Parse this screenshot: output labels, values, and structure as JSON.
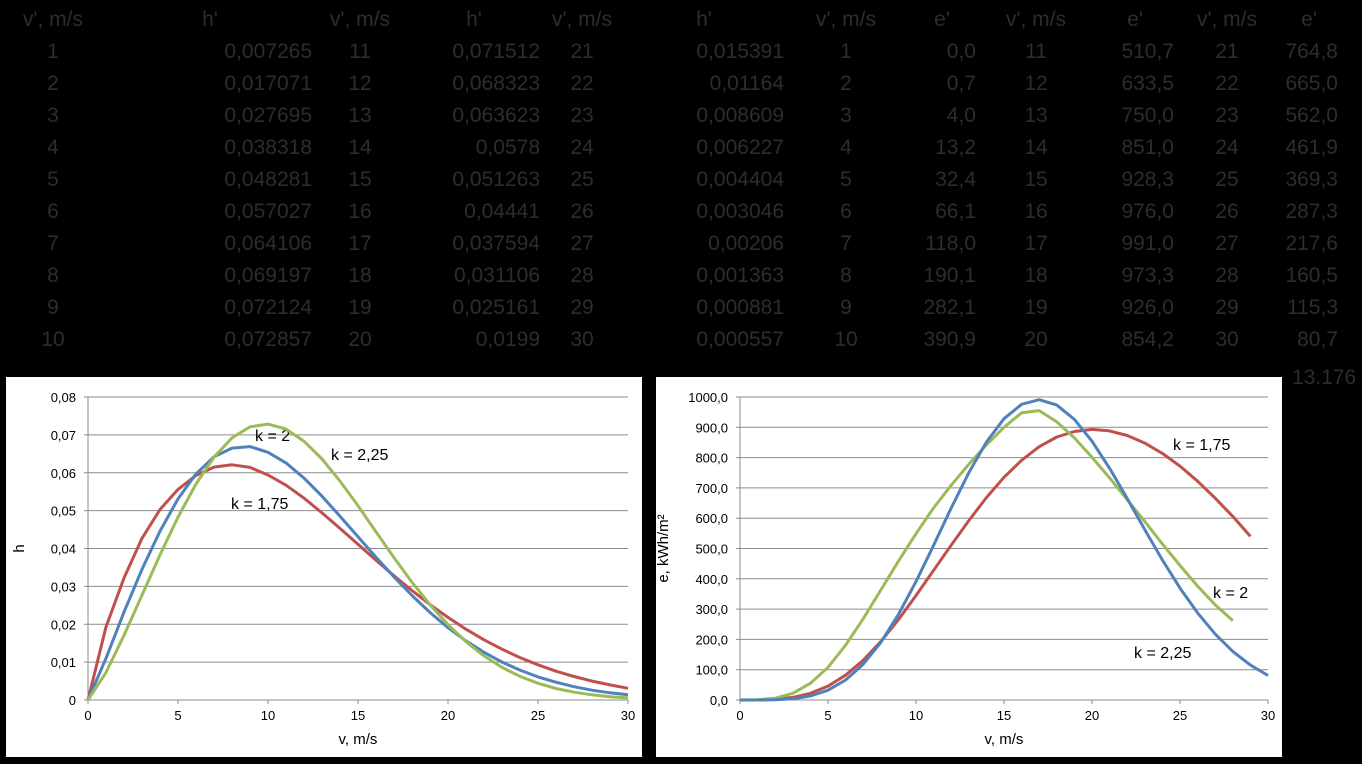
{
  "table": {
    "headers": [
      "v', m/s",
      "h'",
      "v', m/s",
      "h'",
      "v', m/s",
      "h'",
      "v', m/s",
      "e'",
      "v', m/s",
      "e'",
      "v', m/s",
      "e'"
    ],
    "rows": [
      [
        "1",
        "0,007265",
        "11",
        "0,071512",
        "21",
        "0,015391",
        "1",
        "0,0",
        "11",
        "510,7",
        "21",
        "764,8"
      ],
      [
        "2",
        "0,017071",
        "12",
        "0,068323",
        "22",
        "0,01164",
        "2",
        "0,7",
        "12",
        "633,5",
        "22",
        "665,0"
      ],
      [
        "3",
        "0,027695",
        "13",
        "0,063623",
        "23",
        "0,008609",
        "3",
        "4,0",
        "13",
        "750,0",
        "23",
        "562,0"
      ],
      [
        "4",
        "0,038318",
        "14",
        "0,0578",
        "24",
        "0,006227",
        "4",
        "13,2",
        "14",
        "851,0",
        "24",
        "461,9"
      ],
      [
        "5",
        "0,048281",
        "15",
        "0,051263",
        "25",
        "0,004404",
        "5",
        "32,4",
        "15",
        "928,3",
        "25",
        "369,3"
      ],
      [
        "6",
        "0,057027",
        "16",
        "0,04441",
        "26",
        "0,003046",
        "6",
        "66,1",
        "16",
        "976,0",
        "26",
        "287,3"
      ],
      [
        "7",
        "0,064106",
        "17",
        "0,037594",
        "27",
        "0,00206",
        "7",
        "118,0",
        "17",
        "991,0",
        "27",
        "217,6"
      ],
      [
        "8",
        "0,069197",
        "18",
        "0,031106",
        "28",
        "0,001363",
        "8",
        "190,1",
        "18",
        "973,3",
        "28",
        "160,5"
      ],
      [
        "9",
        "0,072124",
        "19",
        "0,025161",
        "29",
        "0,000881",
        "9",
        "282,1",
        "19",
        "926,0",
        "29",
        "115,3"
      ],
      [
        "10",
        "0,072857",
        "20",
        "0,0199",
        "30",
        "0,000557",
        "10",
        "390,9",
        "20",
        "854,2",
        "30",
        "80,7"
      ]
    ],
    "total": "13.176"
  },
  "chart_data": [
    {
      "type": "line",
      "title": "",
      "xlabel": "v, m/s",
      "ylabel": "h",
      "xlim": [
        0,
        30
      ],
      "ylim": [
        0,
        0.08
      ],
      "xticks": [
        "0",
        "5",
        "10",
        "15",
        "20",
        "25",
        "30"
      ],
      "yticks": [
        "0",
        "0,01",
        "0,02",
        "0,03",
        "0,04",
        "0,05",
        "0,06",
        "0,07",
        "0,08"
      ],
      "grid": true,
      "x": [
        0,
        1,
        2,
        3,
        4,
        5,
        6,
        7,
        8,
        9,
        10,
        11,
        12,
        13,
        14,
        15,
        16,
        17,
        18,
        19,
        20,
        21,
        22,
        23,
        24,
        25,
        26,
        27,
        28,
        29,
        30
      ],
      "series": [
        {
          "name": "k = 1,75",
          "color": "#c0504d",
          "values": [
            0,
            0.0193,
            0.0322,
            0.0427,
            0.0503,
            0.0556,
            0.0593,
            0.0615,
            0.0621,
            0.0614,
            0.0594,
            0.0567,
            0.0533,
            0.0494,
            0.0453,
            0.0411,
            0.0369,
            0.0328,
            0.0289,
            0.0252,
            0.0218,
            0.0187,
            0.0159,
            0.0134,
            0.0112,
            0.0093,
            0.0076,
            0.0062,
            0.005,
            0.004,
            0.0031
          ]
        },
        {
          "name": "k = 2",
          "color": "#4f81bd",
          "values": [
            0,
            0.011,
            0.0232,
            0.0345,
            0.0446,
            0.0531,
            0.0597,
            0.0642,
            0.0665,
            0.0669,
            0.0654,
            0.0626,
            0.0586,
            0.0538,
            0.0485,
            0.0431,
            0.0377,
            0.0325,
            0.0276,
            0.0231,
            0.0191,
            0.0156,
            0.0126,
            0.01,
            0.0079,
            0.0061,
            0.0047,
            0.0035,
            0.0026,
            0.0019,
            0.0014
          ]
        },
        {
          "name": "k = 2,25",
          "color": "#9bbb59",
          "values": [
            0,
            0.007265,
            0.017071,
            0.027695,
            0.038318,
            0.048281,
            0.057027,
            0.064106,
            0.069197,
            0.072124,
            0.072857,
            0.071512,
            0.068323,
            0.063623,
            0.0578,
            0.051263,
            0.04441,
            0.037594,
            0.031106,
            0.025161,
            0.0199,
            0.015391,
            0.01164,
            0.008609,
            0.006227,
            0.004404,
            0.003046,
            0.00206,
            0.001363,
            0.000881,
            0.000557
          ]
        }
      ]
    },
    {
      "type": "line",
      "title": "",
      "xlabel": "v, m/s",
      "ylabel": "e, kWh/m²",
      "xlim": [
        0,
        30
      ],
      "ylim": [
        0,
        1000
      ],
      "xticks": [
        "0",
        "5",
        "10",
        "15",
        "20",
        "25",
        "30"
      ],
      "yticks": [
        "0,0",
        "100,0",
        "200,0",
        "300,0",
        "400,0",
        "500,0",
        "600,0",
        "700,0",
        "800,0",
        "900,0",
        "1000,0"
      ],
      "grid": true,
      "series": [
        {
          "name": "k = 1,75",
          "color": "#c0504d",
          "x": [
            0,
            1,
            2,
            3,
            4,
            5,
            6,
            7,
            8,
            9,
            10,
            11,
            12,
            13,
            14,
            15,
            16,
            17,
            18,
            19,
            20,
            21,
            22,
            23,
            24,
            25,
            26,
            27,
            28,
            29
          ],
          "values": [
            0,
            0.3,
            2.5,
            8.5,
            22,
            46,
            82,
            131,
            193,
            265,
            345,
            428,
            511,
            592,
            668,
            735,
            791,
            836,
            868,
            886,
            893,
            888,
            873,
            848,
            814,
            772,
            722,
            666,
            606,
            540
          ]
        },
        {
          "name": "k = 2",
          "color": "#9bbb59",
          "x": [
            0,
            1,
            2,
            3,
            4,
            5,
            6,
            7,
            8,
            9,
            10,
            11,
            12,
            13,
            14,
            15,
            16,
            17,
            18,
            19,
            20,
            21,
            22,
            23,
            24,
            25,
            26,
            27,
            28
          ],
          "values": [
            0,
            1,
            6,
            22,
            55,
            108,
            181,
            268,
            363,
            458,
            549,
            634,
            709,
            778,
            842,
            900,
            948,
            955,
            918,
            865,
            801,
            733,
            661,
            589,
            515,
            444,
            376,
            314,
            262
          ]
        },
        {
          "name": "k = 2,25",
          "color": "#4f81bd",
          "x": [
            0,
            1,
            2,
            3,
            4,
            5,
            6,
            7,
            8,
            9,
            10,
            11,
            12,
            13,
            14,
            15,
            16,
            17,
            18,
            19,
            20,
            21,
            22,
            23,
            24,
            25,
            26,
            27,
            28,
            29,
            30
          ],
          "values": [
            0,
            0,
            0.7,
            4,
            13.2,
            32.4,
            66.1,
            118,
            190.1,
            282.1,
            390.9,
            510.7,
            633.5,
            750,
            851,
            928.3,
            976,
            991,
            973.3,
            926,
            854.2,
            764.8,
            665,
            562,
            461.9,
            369.3,
            287.3,
            217.6,
            160.5,
            115.3,
            80.7
          ]
        }
      ]
    }
  ]
}
